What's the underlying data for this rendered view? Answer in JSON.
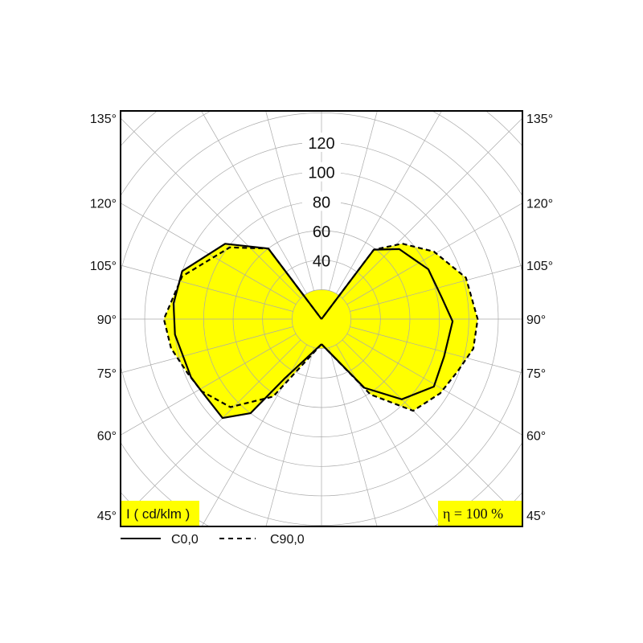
{
  "chart_data": {
    "type": "polar",
    "title": "",
    "unit_label": "I ( cd/klm )",
    "efficiency_label": "η = 100 %",
    "radial_ticks": [
      40,
      60,
      80,
      100,
      120
    ],
    "radial_grid_step": 20,
    "radial_max": 200,
    "angle_grid_step": 15,
    "angle_labels_left": [
      "135°",
      "120°",
      "105°",
      "90°",
      "75°",
      "60°",
      "45°"
    ],
    "angle_labels_right": [
      "135°",
      "120°",
      "105°",
      "90°",
      "75°",
      "60°",
      "45°"
    ],
    "angle_label_values": [
      135,
      120,
      105,
      90,
      75,
      60,
      45
    ],
    "fill_color": "#ffff00",
    "center_fill_value": 20,
    "legend": [
      {
        "name": "C0,0",
        "style": "solid"
      },
      {
        "name": "C90,0",
        "style": "dashed"
      }
    ],
    "series": [
      {
        "name": "C0,0",
        "side": "left",
        "style": "solid",
        "points": [
          [
            0,
            17
          ],
          [
            32,
            48
          ],
          [
            37,
            80
          ],
          [
            45,
            95
          ],
          [
            59,
            95
          ],
          [
            66,
            97
          ],
          [
            84,
            100
          ],
          [
            96,
            101
          ],
          [
            109,
            100
          ],
          [
            128,
            83
          ],
          [
            143,
            60
          ],
          [
            180,
            0
          ]
        ]
      },
      {
        "name": "C0,0",
        "side": "right",
        "style": "solid",
        "points": [
          [
            0,
            17
          ],
          [
            32,
            55
          ],
          [
            45,
            77
          ],
          [
            59,
            89
          ],
          [
            73,
            87
          ],
          [
            89,
            89
          ],
          [
            100,
            83
          ],
          [
            115,
            80
          ],
          [
            132,
            71
          ],
          [
            143,
            59
          ],
          [
            180,
            0
          ]
        ]
      },
      {
        "name": "C90,0",
        "side": "left",
        "style": "dashed",
        "points": [
          [
            0,
            17
          ],
          [
            32,
            62
          ],
          [
            46,
            86
          ],
          [
            59,
            95
          ],
          [
            68,
            98
          ],
          [
            79,
            104
          ],
          [
            90,
            107
          ],
          [
            107,
            99
          ],
          [
            128,
            79
          ],
          [
            143,
            60
          ],
          [
            180,
            0
          ]
        ]
      },
      {
        "name": "C90,0",
        "side": "right",
        "style": "dashed",
        "points": [
          [
            0,
            17
          ],
          [
            33,
            61
          ],
          [
            45,
            88
          ],
          [
            58,
            95
          ],
          [
            69,
            99
          ],
          [
            79,
            105
          ],
          [
            90,
            106
          ],
          [
            106,
            102
          ],
          [
            121,
            89
          ],
          [
            133,
            75
          ],
          [
            143,
            59
          ],
          [
            180,
            0
          ]
        ]
      }
    ]
  }
}
